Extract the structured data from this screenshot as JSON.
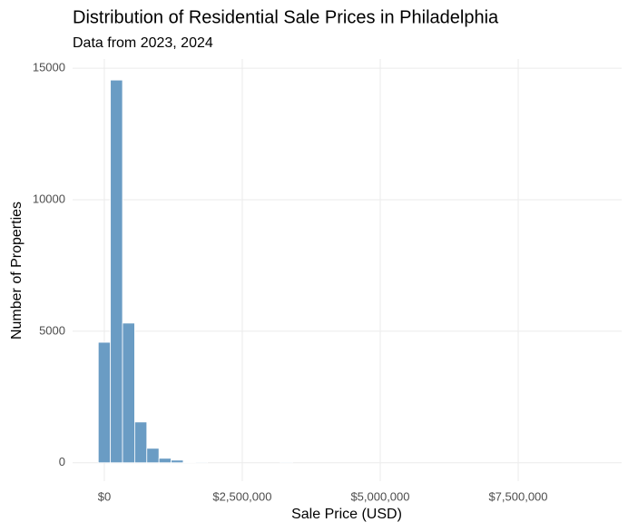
{
  "chart_data": {
    "type": "histogram",
    "title": "Distribution of Residential Sale Prices in Philadelphia",
    "subtitle": "Data from 2023, 2024",
    "x_label": "Sale Price (USD)",
    "y_label": "Number of Properties",
    "bins": [
      -110000,
      110000,
      330000,
      550000,
      770000,
      990000,
      1210000,
      1430000,
      1650000,
      1870000,
      2090000,
      2310000,
      2530000,
      2750000,
      2970000,
      3190000,
      3410000
    ],
    "counts": [
      4580,
      14550,
      5310,
      1550,
      550,
      170,
      100,
      10,
      30,
      0,
      0,
      0,
      0,
      0,
      0,
      30
    ],
    "color": "#6a9cc4",
    "xlim": [
      -575000,
      9375000
    ],
    "xticks": [
      {
        "value": 0,
        "label": "$0"
      },
      {
        "value": 2500000,
        "label": "$2,500,000"
      },
      {
        "value": 5000000,
        "label": "$5,000,000"
      },
      {
        "value": 7500000,
        "label": "$7,500,000"
      }
    ],
    "ylim": [
      -700,
      15350
    ],
    "yticks": [
      0,
      5000,
      10000,
      15000
    ],
    "grid": true
  }
}
